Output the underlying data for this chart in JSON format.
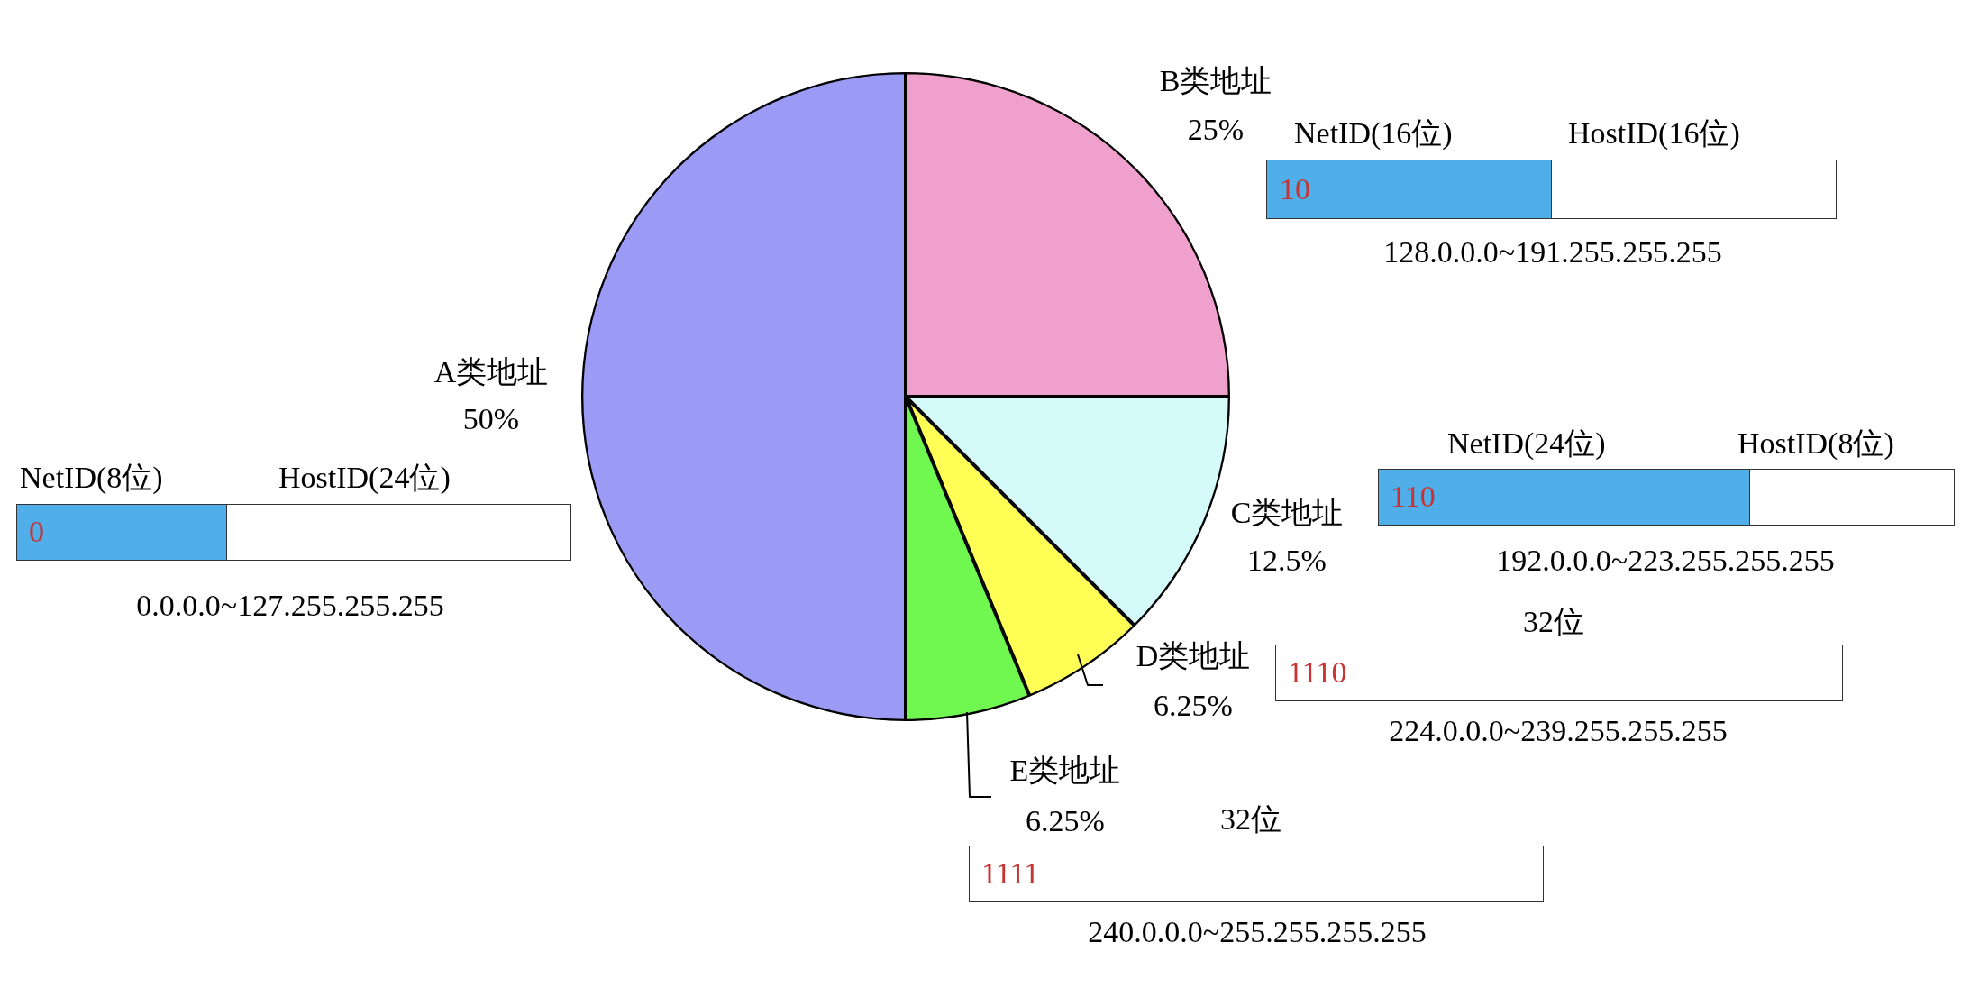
{
  "chart_data": {
    "type": "pie",
    "categories": [
      "B类地址",
      "C类地址",
      "D类地址",
      "E类地址",
      "A类地址"
    ],
    "values": [
      25,
      12.5,
      6.25,
      6.25,
      50
    ],
    "value_labels": [
      "25%",
      "12.5%",
      "6.25%",
      "6.25%",
      "50%"
    ],
    "colors": [
      "#f0a0cc",
      "#d4fafa",
      "#ffff55",
      "#70f850",
      "#9b9bf5"
    ],
    "legend": false,
    "annotations": [
      "NetID(8位)",
      "HostID(24位)",
      "0",
      "0.0.0.0~127.255.255.255",
      "NetID(16位)",
      "HostID(16位)",
      "10",
      "128.0.0.0~191.255.255.255",
      "NetID(24位)",
      "HostID(8位)",
      "110",
      "192.0.0.0~223.255.255.255",
      "32位",
      "1110",
      "224.0.0.0~239.255.255.255",
      "32位",
      "1111",
      "240.0.0.0~255.255.255.255"
    ]
  }
}
